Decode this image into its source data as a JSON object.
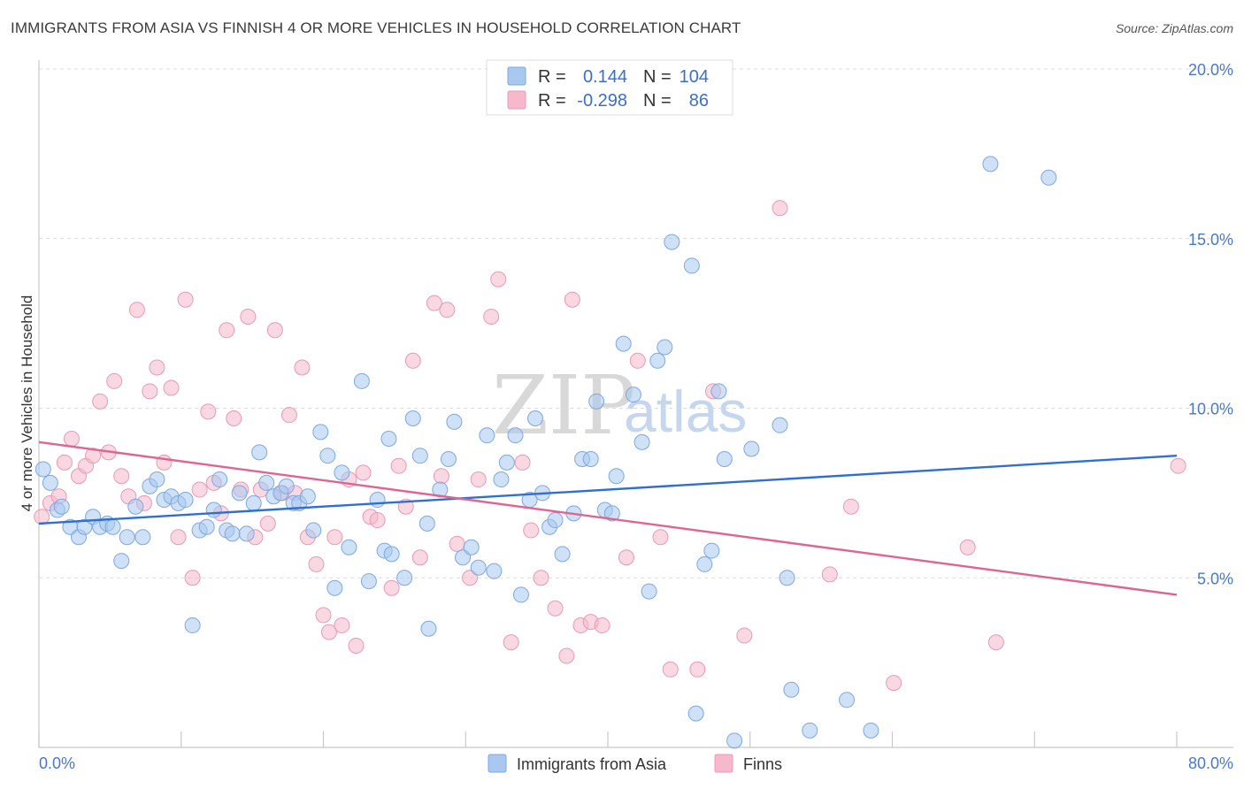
{
  "title": "IMMIGRANTS FROM ASIA VS FINNISH 4 OR MORE VEHICLES IN HOUSEHOLD CORRELATION CHART",
  "source": "Source: ZipAtlas.com",
  "watermark": {
    "zip": "ZIP",
    "atlas": "atlas"
  },
  "legend_top": {
    "rows": [
      {
        "r_label": "R =",
        "r_value": "0.144",
        "n_label": "N =",
        "n_value": "104",
        "color": "#a8c8f0"
      },
      {
        "r_label": "R =",
        "r_value": "-0.298",
        "n_label": "N =",
        "n_value": "86",
        "color": "#f6b8cb"
      }
    ]
  },
  "chart_data": {
    "type": "scatter",
    "title": "IMMIGRANTS FROM ASIA VS FINNISH 4 OR MORE VEHICLES IN HOUSEHOLD CORRELATION CHART",
    "xlabel": "",
    "ylabel": "4 or more Vehicles in Household",
    "xlim": [
      0,
      80
    ],
    "ylim": [
      0,
      20
    ],
    "x_tick_labels": [
      "0.0%",
      "80.0%"
    ],
    "y_ticks": [
      5,
      10,
      15,
      20
    ],
    "y_tick_labels": [
      "5.0%",
      "10.0%",
      "15.0%",
      "20.0%"
    ],
    "grid": true,
    "legend_placement": "bottom-center",
    "series": [
      {
        "name": "Immigrants from Asia",
        "color": "#a8c8f0",
        "line_color": "#2f6fd0",
        "trend": [
          [
            0,
            6.6
          ],
          [
            80,
            8.6
          ]
        ],
        "points": [
          [
            0.3,
            8.2
          ],
          [
            0.8,
            7.8
          ],
          [
            1.3,
            7.0
          ],
          [
            1.6,
            7.1
          ],
          [
            2.2,
            6.5
          ],
          [
            2.8,
            6.2
          ],
          [
            3.2,
            6.5
          ],
          [
            3.8,
            6.8
          ],
          [
            4.3,
            6.5
          ],
          [
            4.8,
            6.6
          ],
          [
            5.2,
            6.5
          ],
          [
            5.8,
            5.5
          ],
          [
            6.2,
            6.2
          ],
          [
            6.8,
            7.1
          ],
          [
            7.3,
            6.2
          ],
          [
            7.8,
            7.7
          ],
          [
            8.3,
            7.9
          ],
          [
            8.8,
            7.3
          ],
          [
            9.3,
            7.4
          ],
          [
            9.8,
            7.2
          ],
          [
            10.3,
            7.3
          ],
          [
            10.8,
            3.6
          ],
          [
            11.3,
            6.4
          ],
          [
            11.8,
            6.5
          ],
          [
            12.3,
            7.0
          ],
          [
            12.7,
            7.9
          ],
          [
            13.2,
            6.4
          ],
          [
            13.6,
            6.3
          ],
          [
            14.1,
            7.5
          ],
          [
            14.6,
            6.3
          ],
          [
            15.1,
            7.2
          ],
          [
            15.5,
            8.7
          ],
          [
            16.0,
            7.8
          ],
          [
            16.5,
            7.4
          ],
          [
            17.0,
            7.5
          ],
          [
            17.4,
            7.7
          ],
          [
            17.9,
            7.2
          ],
          [
            18.3,
            7.2
          ],
          [
            18.9,
            7.4
          ],
          [
            19.3,
            6.4
          ],
          [
            19.8,
            9.3
          ],
          [
            20.3,
            8.6
          ],
          [
            20.8,
            4.7
          ],
          [
            21.3,
            8.1
          ],
          [
            21.8,
            5.9
          ],
          [
            22.7,
            10.8
          ],
          [
            23.2,
            4.9
          ],
          [
            23.8,
            7.3
          ],
          [
            24.3,
            5.8
          ],
          [
            24.8,
            5.7
          ],
          [
            25.7,
            5.0
          ],
          [
            26.3,
            9.7
          ],
          [
            26.8,
            8.6
          ],
          [
            27.3,
            6.6
          ],
          [
            27.4,
            3.5
          ],
          [
            28.2,
            7.6
          ],
          [
            28.8,
            8.5
          ],
          [
            29.2,
            9.6
          ],
          [
            29.8,
            5.6
          ],
          [
            30.4,
            5.9
          ],
          [
            30.9,
            5.3
          ],
          [
            31.5,
            9.2
          ],
          [
            32.0,
            5.2
          ],
          [
            32.5,
            7.9
          ],
          [
            32.9,
            8.4
          ],
          [
            33.5,
            9.2
          ],
          [
            33.9,
            4.5
          ],
          [
            34.5,
            7.3
          ],
          [
            34.9,
            9.7
          ],
          [
            35.4,
            7.5
          ],
          [
            35.9,
            6.5
          ],
          [
            36.3,
            6.7
          ],
          [
            36.8,
            5.7
          ],
          [
            37.6,
            6.9
          ],
          [
            38.2,
            8.5
          ],
          [
            38.8,
            8.5
          ],
          [
            39.2,
            10.2
          ],
          [
            39.8,
            7.0
          ],
          [
            40.3,
            6.9
          ],
          [
            40.6,
            8.0
          ],
          [
            41.1,
            11.9
          ],
          [
            41.8,
            10.4
          ],
          [
            42.4,
            9.0
          ],
          [
            42.9,
            4.6
          ],
          [
            43.5,
            11.4
          ],
          [
            44.0,
            11.8
          ],
          [
            44.5,
            14.9
          ],
          [
            45.9,
            14.2
          ],
          [
            46.2,
            1.0
          ],
          [
            46.8,
            5.4
          ],
          [
            47.3,
            5.8
          ],
          [
            47.8,
            10.5
          ],
          [
            48.2,
            8.5
          ],
          [
            48.9,
            0.2
          ],
          [
            50.1,
            8.8
          ],
          [
            52.1,
            9.5
          ],
          [
            52.6,
            5.0
          ],
          [
            52.9,
            1.7
          ],
          [
            54.2,
            0.5
          ],
          [
            56.8,
            1.4
          ],
          [
            58.5,
            0.5
          ],
          [
            66.9,
            17.2
          ],
          [
            71.0,
            16.8
          ],
          [
            24.6,
            9.1
          ]
        ]
      },
      {
        "name": "Finns",
        "color": "#f6b8cb",
        "line_color": "#e0648f",
        "trend": [
          [
            0,
            9.0
          ],
          [
            80,
            4.5
          ]
        ],
        "points": [
          [
            0.2,
            6.8
          ],
          [
            0.8,
            7.2
          ],
          [
            1.4,
            7.4
          ],
          [
            1.8,
            8.4
          ],
          [
            2.3,
            9.1
          ],
          [
            2.8,
            8.0
          ],
          [
            3.3,
            8.3
          ],
          [
            3.8,
            8.6
          ],
          [
            4.3,
            10.2
          ],
          [
            4.9,
            8.7
          ],
          [
            5.3,
            10.8
          ],
          [
            5.8,
            8.0
          ],
          [
            6.3,
            7.4
          ],
          [
            6.9,
            12.9
          ],
          [
            7.4,
            7.2
          ],
          [
            7.8,
            10.5
          ],
          [
            8.3,
            11.2
          ],
          [
            8.8,
            8.4
          ],
          [
            9.3,
            10.6
          ],
          [
            9.8,
            6.2
          ],
          [
            10.3,
            13.2
          ],
          [
            10.8,
            5.0
          ],
          [
            11.3,
            7.6
          ],
          [
            11.9,
            9.9
          ],
          [
            12.3,
            7.8
          ],
          [
            12.8,
            6.9
          ],
          [
            13.2,
            12.3
          ],
          [
            13.7,
            9.7
          ],
          [
            14.2,
            7.6
          ],
          [
            14.7,
            12.7
          ],
          [
            15.2,
            6.2
          ],
          [
            15.6,
            7.6
          ],
          [
            16.1,
            6.6
          ],
          [
            16.6,
            12.3
          ],
          [
            17.1,
            7.5
          ],
          [
            17.6,
            9.8
          ],
          [
            18.0,
            7.5
          ],
          [
            18.5,
            11.2
          ],
          [
            18.9,
            6.2
          ],
          [
            19.5,
            5.4
          ],
          [
            20.0,
            3.9
          ],
          [
            20.4,
            3.4
          ],
          [
            20.8,
            6.2
          ],
          [
            21.3,
            3.6
          ],
          [
            21.8,
            7.9
          ],
          [
            22.3,
            3.0
          ],
          [
            22.8,
            8.1
          ],
          [
            23.3,
            6.8
          ],
          [
            23.8,
            6.7
          ],
          [
            24.8,
            4.7
          ],
          [
            25.3,
            8.3
          ],
          [
            25.8,
            7.1
          ],
          [
            26.3,
            11.4
          ],
          [
            26.8,
            5.6
          ],
          [
            27.8,
            13.1
          ],
          [
            28.3,
            8.0
          ],
          [
            28.7,
            12.9
          ],
          [
            29.4,
            6.0
          ],
          [
            30.3,
            5.0
          ],
          [
            30.9,
            7.9
          ],
          [
            31.8,
            12.7
          ],
          [
            32.3,
            13.8
          ],
          [
            33.2,
            3.1
          ],
          [
            34.0,
            8.4
          ],
          [
            34.6,
            6.4
          ],
          [
            35.3,
            5.0
          ],
          [
            36.3,
            4.1
          ],
          [
            37.1,
            2.7
          ],
          [
            37.5,
            13.2
          ],
          [
            38.1,
            3.6
          ],
          [
            38.8,
            3.7
          ],
          [
            39.6,
            3.6
          ],
          [
            41.3,
            5.6
          ],
          [
            42.1,
            11.4
          ],
          [
            43.7,
            6.2
          ],
          [
            44.4,
            2.3
          ],
          [
            46.3,
            2.3
          ],
          [
            47.4,
            10.5
          ],
          [
            49.6,
            3.3
          ],
          [
            52.1,
            15.9
          ],
          [
            55.6,
            5.1
          ],
          [
            57.1,
            7.1
          ],
          [
            60.1,
            1.9
          ],
          [
            65.3,
            5.9
          ],
          [
            67.3,
            3.1
          ],
          [
            80.1,
            8.3
          ]
        ]
      }
    ]
  },
  "bottom_legend": [
    {
      "label": "Immigrants from Asia",
      "color": "#a8c8f0"
    },
    {
      "label": "Finns",
      "color": "#f6b8cb"
    }
  ]
}
